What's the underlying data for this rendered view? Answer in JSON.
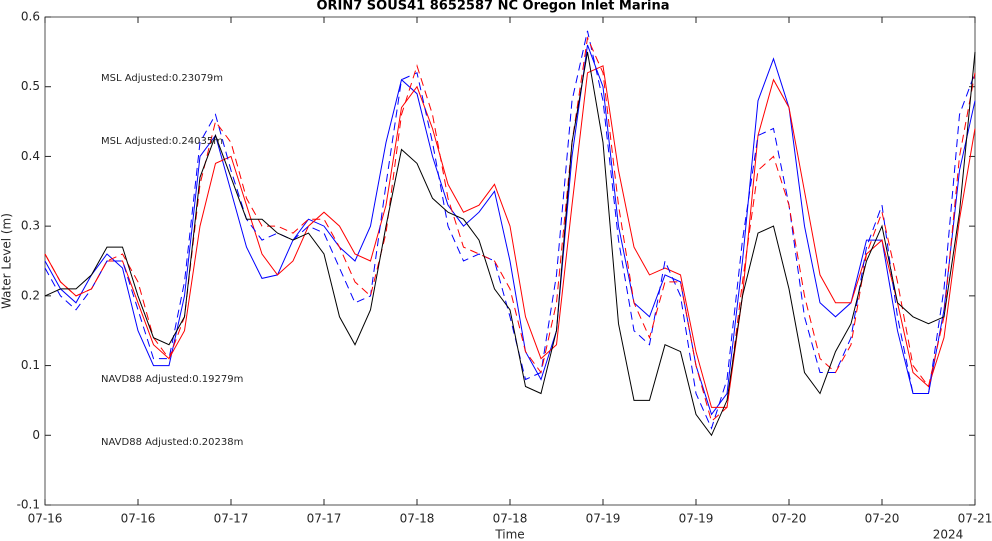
{
  "chart_data": {
    "type": "line",
    "title": "ORIN7 SOUS41 8652587 NC Oregon Inlet Marina",
    "xlabel": "Time",
    "ylabel": "Water Level (m)",
    "x_year_label": "2024",
    "x": [
      0,
      2,
      4,
      6,
      8,
      10,
      12,
      14,
      16,
      18,
      20,
      22,
      24,
      26,
      28,
      30,
      32,
      34,
      36,
      38,
      40,
      42,
      44,
      46,
      48,
      50,
      52,
      54,
      56,
      58,
      60,
      62,
      64,
      66,
      68,
      70,
      72,
      74,
      76,
      78,
      80,
      82,
      84,
      86,
      88,
      90,
      92,
      94,
      96,
      98,
      100,
      102,
      104,
      106,
      108,
      110,
      112,
      114,
      116,
      118,
      120
    ],
    "xlim": [
      0,
      120
    ],
    "xticks": [
      {
        "value": 0,
        "label": "07-16"
      },
      {
        "value": 12,
        "label": "07-16"
      },
      {
        "value": 24,
        "label": "07-17"
      },
      {
        "value": 36,
        "label": "07-17"
      },
      {
        "value": 48,
        "label": "07-18"
      },
      {
        "value": 60,
        "label": "07-18"
      },
      {
        "value": 72,
        "label": "07-19"
      },
      {
        "value": 84,
        "label": "07-19"
      },
      {
        "value": 96,
        "label": "07-20"
      },
      {
        "value": 108,
        "label": "07-20"
      },
      {
        "value": 120,
        "label": "07-21"
      }
    ],
    "ylim": [
      -0.1,
      0.6
    ],
    "yticks": [
      -0.1,
      0,
      0.1,
      0.2,
      0.3,
      0.4,
      0.5,
      0.6
    ],
    "grid": false,
    "series": [
      {
        "color": "#0000ff",
        "dashed": false,
        "values": [
          0.25,
          0.21,
          0.19,
          0.23,
          0.26,
          0.24,
          0.15,
          0.1,
          0.1,
          0.2,
          0.4,
          0.43,
          0.35,
          0.27,
          0.225,
          0.23,
          0.28,
          0.31,
          0.3,
          0.27,
          0.25,
          0.3,
          0.42,
          0.51,
          0.49,
          0.4,
          0.33,
          0.3,
          0.32,
          0.35,
          0.25,
          0.12,
          0.08,
          0.15,
          0.4,
          0.56,
          0.5,
          0.3,
          0.19,
          0.17,
          0.23,
          0.22,
          0.1,
          0.03,
          0.06,
          0.25,
          0.48,
          0.54,
          0.47,
          0.3,
          0.19,
          0.17,
          0.19,
          0.28,
          0.28,
          0.15,
          0.06,
          0.06,
          0.18,
          0.38,
          0.48
        ]
      },
      {
        "color": "#ff0000",
        "dashed": false,
        "values": [
          0.26,
          0.22,
          0.2,
          0.21,
          0.25,
          0.25,
          0.19,
          0.13,
          0.11,
          0.15,
          0.3,
          0.39,
          0.4,
          0.33,
          0.26,
          0.23,
          0.25,
          0.3,
          0.32,
          0.3,
          0.26,
          0.25,
          0.33,
          0.47,
          0.5,
          0.44,
          0.36,
          0.32,
          0.33,
          0.36,
          0.3,
          0.17,
          0.11,
          0.13,
          0.33,
          0.52,
          0.53,
          0.38,
          0.27,
          0.23,
          0.24,
          0.23,
          0.12,
          0.04,
          0.04,
          0.2,
          0.43,
          0.51,
          0.47,
          0.35,
          0.23,
          0.19,
          0.19,
          0.26,
          0.28,
          0.19,
          0.09,
          0.07,
          0.14,
          0.31,
          0.44
        ]
      },
      {
        "color": "#0000ff",
        "dashed": true,
        "values": [
          0.24,
          0.2,
          0.18,
          0.21,
          0.25,
          0.25,
          0.18,
          0.11,
          0.11,
          0.22,
          0.42,
          0.46,
          0.38,
          0.31,
          0.28,
          0.29,
          0.28,
          0.3,
          0.29,
          0.24,
          0.19,
          0.2,
          0.36,
          0.51,
          0.52,
          0.42,
          0.3,
          0.25,
          0.26,
          0.25,
          0.17,
          0.08,
          0.09,
          0.23,
          0.48,
          0.58,
          0.48,
          0.28,
          0.15,
          0.13,
          0.25,
          0.2,
          0.06,
          0.01,
          0.08,
          0.28,
          0.43,
          0.44,
          0.33,
          0.17,
          0.09,
          0.09,
          0.14,
          0.27,
          0.33,
          0.17,
          0.06,
          0.06,
          0.21,
          0.46,
          0.52
        ]
      },
      {
        "color": "#ff0000",
        "dashed": true,
        "values": [
          0.26,
          0.22,
          0.2,
          0.21,
          0.25,
          0.26,
          0.22,
          0.14,
          0.11,
          0.17,
          0.36,
          0.45,
          0.42,
          0.34,
          0.3,
          0.3,
          0.29,
          0.31,
          0.31,
          0.27,
          0.22,
          0.2,
          0.29,
          0.46,
          0.53,
          0.46,
          0.34,
          0.27,
          0.26,
          0.25,
          0.21,
          0.12,
          0.09,
          0.19,
          0.42,
          0.57,
          0.52,
          0.33,
          0.19,
          0.14,
          0.22,
          0.22,
          0.1,
          0.02,
          0.04,
          0.22,
          0.38,
          0.4,
          0.33,
          0.2,
          0.11,
          0.09,
          0.13,
          0.26,
          0.32,
          0.22,
          0.1,
          0.07,
          0.17,
          0.4,
          0.52
        ]
      },
      {
        "color": "#000000",
        "dashed": false,
        "values": [
          0.2,
          0.21,
          0.21,
          0.23,
          0.27,
          0.27,
          0.2,
          0.14,
          0.13,
          0.17,
          0.37,
          0.43,
          0.37,
          0.31,
          0.31,
          0.29,
          0.28,
          0.29,
          0.26,
          0.17,
          0.13,
          0.18,
          0.3,
          0.41,
          0.39,
          0.34,
          0.32,
          0.31,
          0.28,
          0.21,
          0.18,
          0.07,
          0.06,
          0.15,
          0.42,
          0.55,
          0.42,
          0.16,
          0.05,
          0.05,
          0.13,
          0.12,
          0.03,
          0.0,
          0.05,
          0.2,
          0.29,
          0.3,
          0.21,
          0.09,
          0.06,
          0.12,
          0.16,
          0.25,
          0.3,
          0.19,
          0.17,
          0.16,
          0.17,
          0.32,
          0.55
        ]
      }
    ],
    "annotations": [
      {
        "text": "MSL Adjusted:0.23079m",
        "color": "#0000ff"
      },
      {
        "text": "MSL Adjusted:0.24035m",
        "color": "#ff0000"
      },
      {
        "text": "NAVD88 Adjusted:0.19279m",
        "color": "#0000ff"
      },
      {
        "text": "NAVD88 Adjusted:0.20238m",
        "color": "#ff0000"
      }
    ]
  }
}
